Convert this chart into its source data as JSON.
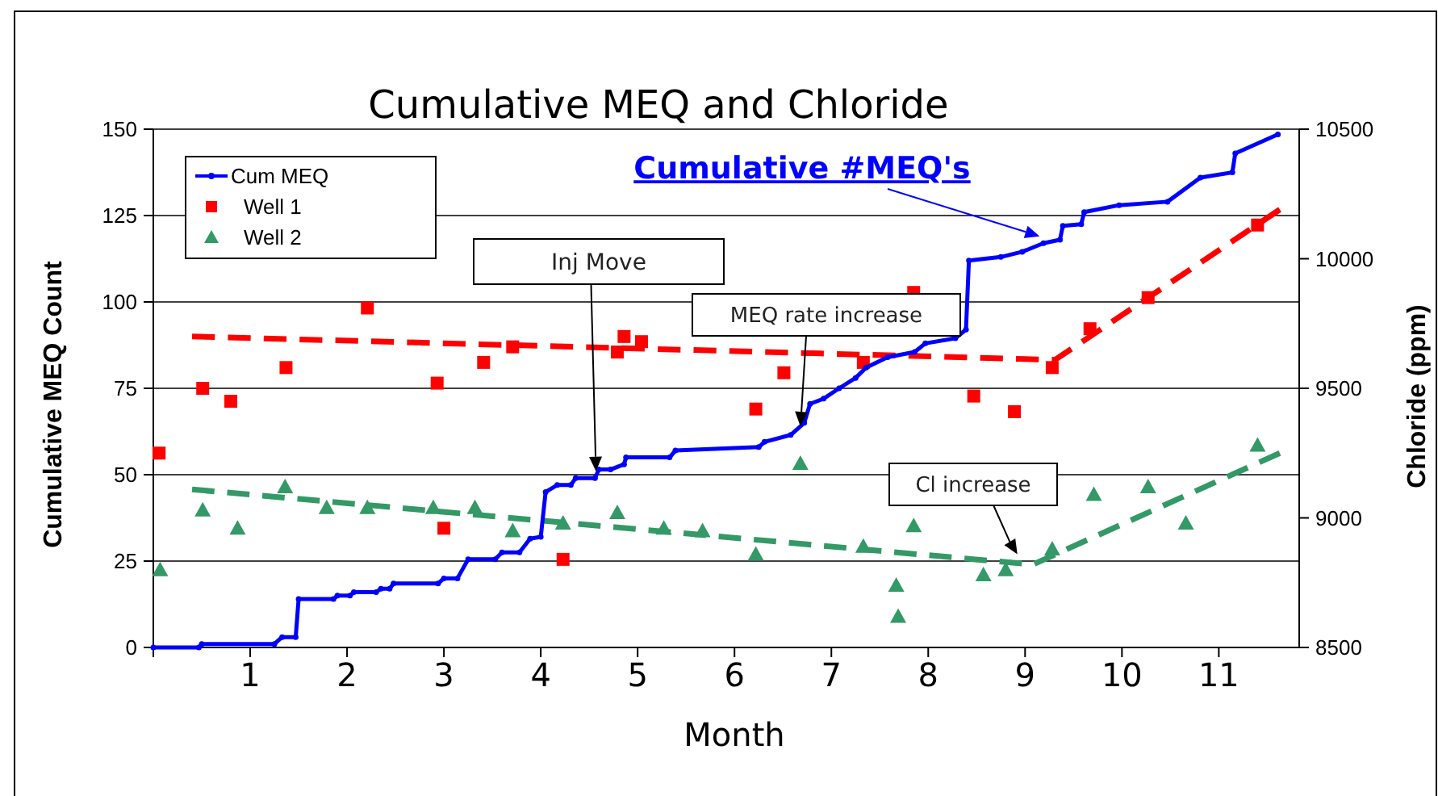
{
  "chart_data": {
    "type": "line",
    "title": "Cumulative MEQ and Chloride",
    "xlabel": "Month",
    "ylabel": "Cumulative MEQ Count",
    "y2label": "Chloride (ppm)",
    "xlim": [
      0,
      11.83
    ],
    "xticks": [
      {
        "value": 0,
        "label": null
      },
      1,
      2,
      3,
      4,
      5,
      6,
      7,
      8,
      9,
      10,
      11
    ],
    "ylim": [
      0,
      150
    ],
    "yticks": [
      0,
      25,
      50,
      75,
      100,
      125,
      150
    ],
    "y2lim": [
      8500,
      10500
    ],
    "y2ticks": [
      8500,
      9000,
      9500,
      10000,
      10500
    ],
    "grid": "y",
    "legend": "top left",
    "series": [
      {
        "name": "Cum MEQ",
        "color": "#0000ff",
        "marker": "circle",
        "line_style": "solid",
        "x": [
          0,
          0.47,
          0.5,
          1.25,
          1.33,
          1.47,
          1.5,
          1.86,
          1.9,
          2.03,
          2.07,
          2.3,
          2.35,
          2.44,
          2.48,
          2.94,
          3.0,
          3.14,
          3.25,
          3.53,
          3.6,
          3.78,
          3.89,
          4.0,
          4.05,
          4.17,
          4.31,
          4.36,
          4.56,
          4.6,
          4.72,
          4.86,
          4.88,
          5.33,
          5.39,
          6.25,
          6.31,
          6.58,
          6.72,
          6.78,
          6.92,
          7.08,
          7.25,
          7.36,
          7.58,
          7.86,
          7.97,
          8.28,
          8.39,
          8.42,
          8.75,
          8.97,
          9.19,
          9.36,
          9.39,
          9.58,
          9.61,
          9.97,
          10.47,
          10.81,
          11.14,
          11.17,
          11.61
        ],
        "values": [
          0,
          0,
          1,
          1,
          3,
          3,
          14,
          14,
          15,
          15,
          16,
          16,
          17,
          17,
          18.5,
          18.5,
          20,
          20,
          25.5,
          25.5,
          27.5,
          27.5,
          31.5,
          32,
          45,
          47,
          47,
          49,
          49,
          51.5,
          51.5,
          53,
          55,
          55,
          57,
          58,
          59.5,
          61.5,
          65,
          70.5,
          72,
          75,
          78,
          81,
          84,
          85.5,
          88,
          89.5,
          92,
          112,
          113,
          114.5,
          117,
          118,
          122,
          122.5,
          126,
          128,
          129,
          136,
          137.5,
          143,
          148.5
        ]
      },
      {
        "name": "Well 1",
        "type": "scatter",
        "axis": "y2",
        "color": "#ff0000",
        "marker": "square",
        "x": [
          0.06,
          0.51,
          0.8,
          1.37,
          2.21,
          2.93,
          3.0,
          3.41,
          3.71,
          4.23,
          4.79,
          4.86,
          5.04,
          6.22,
          6.51,
          7.33,
          7.85,
          8.47,
          8.89,
          9.28,
          9.67,
          10.27,
          11.4
        ],
        "values": [
          9250,
          9500,
          9450,
          9580,
          9810,
          9520,
          8960,
          9600,
          9660,
          8840,
          9640,
          9700,
          9680,
          9420,
          9560,
          9600,
          9870,
          9470,
          9410,
          9580,
          9730,
          9850,
          10130
        ]
      },
      {
        "name": "Well 2",
        "type": "scatter",
        "axis": "y2",
        "color": "#339966",
        "marker": "triangle",
        "x": [
          0.07,
          0.51,
          0.87,
          1.36,
          1.79,
          2.21,
          2.89,
          3.32,
          3.71,
          4.23,
          4.79,
          5.27,
          5.67,
          6.22,
          6.68,
          7.33,
          7.67,
          7.69,
          7.85,
          8.57,
          8.8,
          9.28,
          9.71,
          10.27,
          10.66,
          11.4
        ],
        "values": [
          8800,
          9030,
          8960,
          9120,
          9040,
          9040,
          9040,
          9040,
          8950,
          8980,
          9020,
          8960,
          8950,
          8860,
          9210,
          8890,
          8740,
          8620,
          8970,
          8780,
          8800,
          8880,
          9090,
          9120,
          8980,
          9280
        ]
      },
      {
        "type": "line",
        "axis": "y2",
        "color": "#ff0000",
        "marker": "none",
        "line_style": "dashed",
        "x": [
          0.4,
          9.31,
          11.63
        ],
        "values": [
          9700,
          9610,
          10190
        ]
      },
      {
        "type": "line",
        "axis": "y2",
        "color": "#339966",
        "marker": "none",
        "line_style": "dashed",
        "x": [
          0.4,
          9.08,
          11.63
        ],
        "values": [
          9110,
          8820,
          9250
        ]
      }
    ],
    "annotations": [
      {
        "text": "Cumulative #MEQ's",
        "x": 9.15,
        "y": 119
      },
      {
        "text": "Inj Move",
        "x": 4.57,
        "y": 51
      },
      {
        "text": "MEQ rate increase",
        "x": 6.68,
        "y": 64
      },
      {
        "text": "Cl increase",
        "x": 8.92,
        "y": 27
      }
    ]
  }
}
